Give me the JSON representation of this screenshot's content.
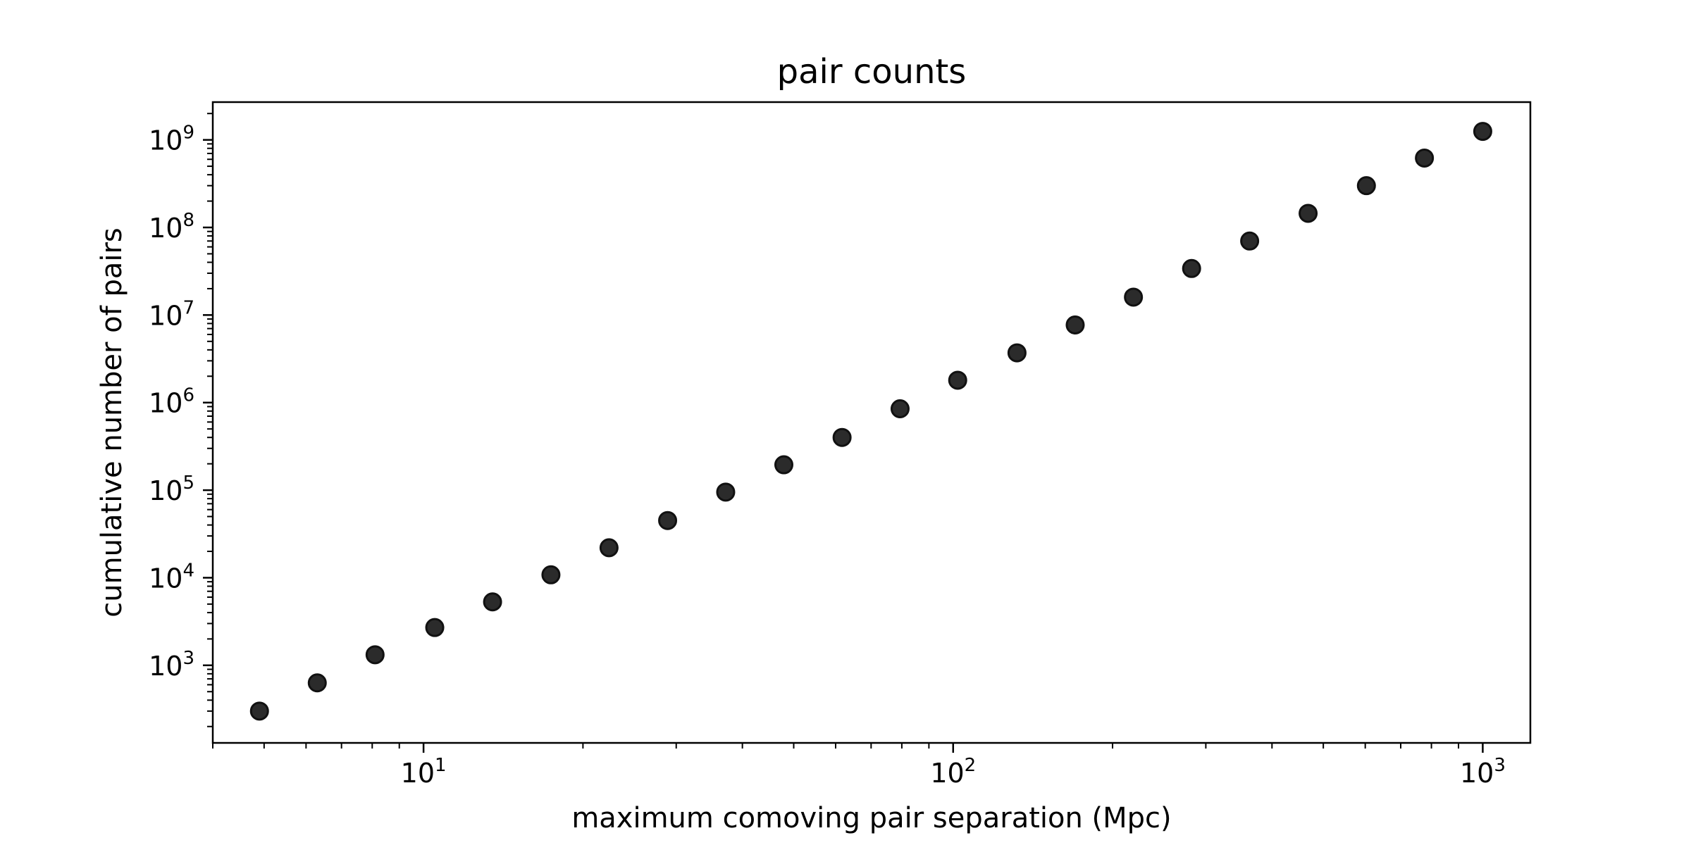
{
  "chart_data": {
    "type": "scatter",
    "title": "pair counts",
    "xlabel": "maximum comoving pair separation (Mpc)",
    "ylabel": "cumulative number of pairs",
    "xscale": "log",
    "yscale": "log",
    "xlim": [
      4.0,
      1230.0
    ],
    "ylim": [
      130,
      2700000000
    ],
    "grid": false,
    "legend": "none",
    "marker_color": "#2b2b2b",
    "marker_edge_color": "#111111",
    "x_ticks": [
      {
        "value": 10,
        "base": "10",
        "exp": "1"
      },
      {
        "value": 100,
        "base": "10",
        "exp": "2"
      },
      {
        "value": 1000,
        "base": "10",
        "exp": "3"
      }
    ],
    "y_ticks": [
      {
        "value": 1000,
        "base": "10",
        "exp": "3"
      },
      {
        "value": 10000,
        "base": "10",
        "exp": "4"
      },
      {
        "value": 100000,
        "base": "10",
        "exp": "5"
      },
      {
        "value": 1000000,
        "base": "10",
        "exp": "6"
      },
      {
        "value": 10000000,
        "base": "10",
        "exp": "7"
      },
      {
        "value": 100000000,
        "base": "10",
        "exp": "8"
      },
      {
        "value": 1000000000,
        "base": "10",
        "exp": "9"
      }
    ],
    "points": [
      {
        "x": 4.9,
        "y": 300
      },
      {
        "x": 6.3,
        "y": 630
      },
      {
        "x": 8.1,
        "y": 1320
      },
      {
        "x": 10.5,
        "y": 2700
      },
      {
        "x": 13.5,
        "y": 5300
      },
      {
        "x": 17.4,
        "y": 10800
      },
      {
        "x": 22.4,
        "y": 22000
      },
      {
        "x": 28.9,
        "y": 45000
      },
      {
        "x": 37.2,
        "y": 95000
      },
      {
        "x": 47.9,
        "y": 195000
      },
      {
        "x": 61.7,
        "y": 400000
      },
      {
        "x": 79.4,
        "y": 850000
      },
      {
        "x": 102,
        "y": 1800000
      },
      {
        "x": 132,
        "y": 3700000
      },
      {
        "x": 170,
        "y": 7700000
      },
      {
        "x": 219,
        "y": 16000000
      },
      {
        "x": 282,
        "y": 34000000
      },
      {
        "x": 363,
        "y": 70000000
      },
      {
        "x": 468,
        "y": 145000000
      },
      {
        "x": 603,
        "y": 300000000
      },
      {
        "x": 776,
        "y": 620000000
      },
      {
        "x": 1000,
        "y": 1250000000
      }
    ]
  }
}
